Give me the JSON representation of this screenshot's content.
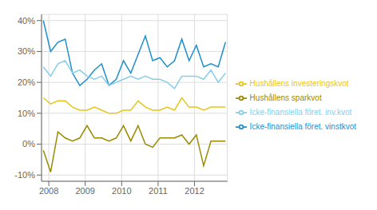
{
  "chart_data": {
    "type": "line",
    "x": [
      2007.85,
      2008.05,
      2008.25,
      2008.45,
      2008.65,
      2008.85,
      2009.05,
      2009.25,
      2009.45,
      2009.65,
      2009.85,
      2010.05,
      2010.25,
      2010.45,
      2010.65,
      2010.85,
      2011.05,
      2011.25,
      2011.45,
      2011.65,
      2011.85,
      2012.05,
      2012.25,
      2012.45,
      2012.65,
      2012.85
    ],
    "series": [
      {
        "name": "Icke-finansiella föret. vinstkvot",
        "color": "#1e8fcc",
        "values": [
          0.4,
          0.3,
          0.33,
          0.34,
          0.23,
          0.19,
          0.21,
          0.24,
          0.26,
          0.19,
          0.21,
          0.27,
          0.23,
          0.29,
          0.35,
          0.27,
          0.28,
          0.25,
          0.27,
          0.34,
          0.27,
          0.32,
          0.25,
          0.26,
          0.25,
          0.33
        ]
      },
      {
        "name": "Icke-finansiella föret. inv.kvot",
        "color": "#87ceeb",
        "values": [
          0.25,
          0.22,
          0.26,
          0.27,
          0.23,
          0.24,
          0.22,
          0.21,
          0.22,
          0.19,
          0.2,
          0.21,
          0.22,
          0.21,
          0.22,
          0.21,
          0.21,
          0.2,
          0.18,
          0.22,
          0.22,
          0.22,
          0.21,
          0.24,
          0.2,
          0.23
        ]
      },
      {
        "name": "Hushållens investeringskvot",
        "color": "#e6c619",
        "values": [
          0.15,
          0.13,
          0.14,
          0.14,
          0.12,
          0.11,
          0.11,
          0.12,
          0.11,
          0.1,
          0.1,
          0.11,
          0.11,
          0.14,
          0.12,
          0.11,
          0.11,
          0.12,
          0.11,
          0.15,
          0.12,
          0.12,
          0.11,
          0.12,
          0.12,
          0.12
        ]
      },
      {
        "name": "Hushållens sparkvot",
        "color": "#9b8a00",
        "values": [
          -0.02,
          -0.09,
          0.04,
          0.02,
          0.01,
          0.02,
          0.06,
          0.02,
          0.02,
          0.01,
          0.02,
          0.06,
          0.01,
          0.06,
          0.0,
          -0.01,
          0.02,
          0.02,
          0.02,
          0.03,
          0.0,
          0.03,
          -0.07,
          0.01,
          0.01,
          0.01
        ]
      }
    ],
    "xlim": [
      2007.8,
      2012.9
    ],
    "xticks": [
      2008,
      2009,
      2010,
      2011,
      2012
    ],
    "ylim": [
      -0.12,
      0.42
    ],
    "yticks": [
      {
        "value": -0.1,
        "label": "-10%"
      },
      {
        "value": 0.0,
        "label": "0%"
      },
      {
        "value": 0.1,
        "label": "10%"
      },
      {
        "value": 0.2,
        "label": "20%"
      },
      {
        "value": 0.3,
        "label": "30%"
      },
      {
        "value": 0.4,
        "label": "40%"
      }
    ],
    "grid": true,
    "legend": "right"
  }
}
